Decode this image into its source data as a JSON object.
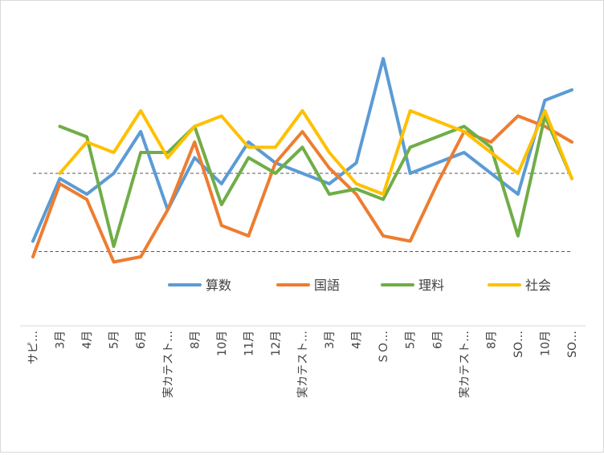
{
  "chart_data": {
    "type": "line",
    "categories": [
      "サピ…",
      "3月",
      "4月",
      "5月",
      "6月",
      "実カテスト…",
      "8月",
      "10月",
      "11月",
      "12月",
      "実カテスト…",
      "3月",
      "4月",
      "ＳＯ…",
      "5月",
      "6月",
      "実カテスト…",
      "8月",
      "SO…",
      "10月",
      "SO…"
    ],
    "ylim": [
      20,
      80
    ],
    "reference_lines": [
      50,
      35
    ],
    "legend_position": "bottom",
    "series": [
      {
        "name": "算数",
        "color": "#5b9bd5",
        "values": [
          37,
          49,
          46,
          50,
          58,
          43,
          53,
          48,
          56,
          52,
          50,
          48,
          52,
          72,
          50,
          52,
          54,
          50,
          46,
          64,
          66
        ]
      },
      {
        "name": "国語",
        "color": "#ed7d31",
        "values": [
          34,
          48,
          45,
          33,
          34,
          43,
          56,
          40,
          38,
          52,
          58,
          51,
          46,
          38,
          37,
          48,
          58,
          56,
          61,
          59,
          56
        ]
      },
      {
        "name": "理料",
        "color": "#70ad47",
        "values": null,
        "values_full": [
          null,
          59,
          57,
          36,
          54,
          54,
          59,
          44,
          53,
          50,
          55,
          46,
          47,
          45,
          55,
          57,
          59,
          55,
          38,
          61,
          49
        ]
      },
      {
        "name": "社会",
        "color": "#ffc000",
        "values": [
          null,
          50,
          56,
          54,
          62,
          53,
          59,
          61,
          55,
          55,
          62,
          54,
          48,
          46,
          62,
          60,
          58,
          54,
          50,
          62,
          49
        ]
      }
    ]
  }
}
